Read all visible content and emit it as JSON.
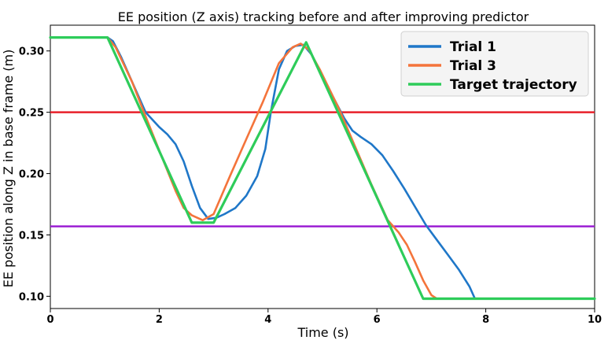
{
  "chart_data": {
    "type": "line",
    "title": "EE position (Z axis) tracking before and after improving predictor",
    "xlabel": "Time (s)",
    "ylabel": "EE position along Z in base frame (m)",
    "xlim": [
      0,
      10
    ],
    "ylim": [
      0.09,
      0.321
    ],
    "xticks": [
      0,
      2,
      4,
      6,
      8,
      10
    ],
    "yticks": [
      0.1,
      0.15,
      0.2,
      0.25,
      0.3
    ],
    "ytick_labels": [
      "0.10",
      "0.15",
      "0.20",
      "0.25",
      "0.30"
    ],
    "grid": false,
    "legend_position": "top-right",
    "reference_lines": [
      {
        "y": 0.25,
        "color": "#e8202a"
      },
      {
        "y": 0.157,
        "color": "#9b1fd3"
      }
    ],
    "series": [
      {
        "name": "Trial 1",
        "color": "#1f77c8",
        "x": [
          0,
          1.05,
          1.15,
          1.3,
          1.5,
          1.75,
          2.0,
          2.15,
          2.3,
          2.45,
          2.6,
          2.75,
          2.9,
          3.05,
          3.2,
          3.4,
          3.6,
          3.8,
          3.95,
          4.05,
          4.2,
          4.35,
          4.5,
          4.65,
          4.8,
          5.0,
          5.2,
          5.4,
          5.55,
          5.7,
          5.9,
          6.1,
          6.3,
          6.5,
          6.7,
          6.9,
          7.1,
          7.3,
          7.5,
          7.7,
          7.8,
          7.95,
          10
        ],
        "y": [
          0.311,
          0.311,
          0.308,
          0.295,
          0.275,
          0.25,
          0.238,
          0.232,
          0.224,
          0.21,
          0.19,
          0.172,
          0.163,
          0.164,
          0.167,
          0.172,
          0.182,
          0.198,
          0.22,
          0.25,
          0.285,
          0.3,
          0.304,
          0.305,
          0.297,
          0.28,
          0.262,
          0.245,
          0.235,
          0.23,
          0.224,
          0.215,
          0.202,
          0.188,
          0.173,
          0.158,
          0.146,
          0.134,
          0.122,
          0.108,
          0.098,
          0.098,
          0.098
        ]
      },
      {
        "name": "Trial 3",
        "color": "#f4743b",
        "x": [
          0,
          1.05,
          1.2,
          1.5,
          1.8,
          2.1,
          2.3,
          2.45,
          2.6,
          2.8,
          3.0,
          3.3,
          3.6,
          3.9,
          4.2,
          4.45,
          4.6,
          4.75,
          4.95,
          5.3,
          5.6,
          5.9,
          6.2,
          6.4,
          6.55,
          6.7,
          6.85,
          7.0,
          7.1,
          7.3,
          10
        ],
        "y": [
          0.311,
          0.311,
          0.303,
          0.275,
          0.241,
          0.208,
          0.186,
          0.172,
          0.166,
          0.162,
          0.167,
          0.198,
          0.228,
          0.258,
          0.29,
          0.303,
          0.306,
          0.301,
          0.285,
          0.253,
          0.222,
          0.191,
          0.162,
          0.152,
          0.142,
          0.128,
          0.113,
          0.101,
          0.098,
          0.098,
          0.098
        ]
      },
      {
        "name": "Target trajectory",
        "color": "#2ecc5a",
        "x": [
          0,
          1.05,
          2.6,
          3.0,
          4.7,
          6.85,
          10
        ],
        "y": [
          0.311,
          0.311,
          0.16,
          0.16,
          0.307,
          0.098,
          0.098
        ]
      }
    ]
  }
}
